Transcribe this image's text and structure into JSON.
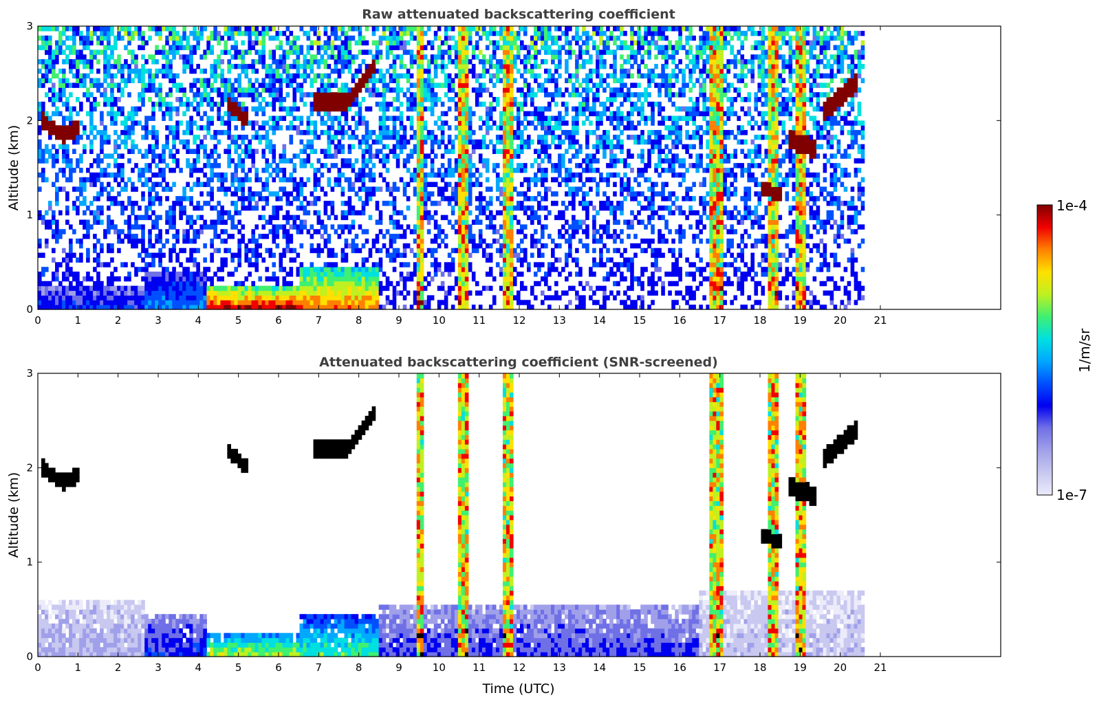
{
  "chart_data": [
    {
      "type": "heatmap",
      "title": "Raw attenuated backscattering coefficient",
      "xlabel": "",
      "ylabel": "Altitude (km)",
      "xlim": [
        0,
        24
      ],
      "ylim": [
        0,
        3
      ],
      "x_ticks": [
        0,
        1,
        2,
        3,
        4,
        5,
        6,
        7,
        8,
        9,
        10,
        11,
        12,
        13,
        14,
        15,
        16,
        17,
        18,
        19,
        20,
        21
      ],
      "y_ticks": [
        0,
        1,
        2,
        3
      ],
      "x_tick_labels": [
        "0",
        "1",
        "2",
        "3",
        "4",
        "5",
        "6",
        "7",
        "8",
        "9",
        "10",
        "11",
        "12",
        "13",
        "14",
        "15",
        "16",
        "17",
        "18",
        "19",
        "20",
        "21"
      ],
      "y_tick_labels": [
        "0",
        "1",
        "2",
        "3"
      ],
      "data_end_hour": 20.6,
      "grid": false,
      "features": {
        "surface_layer": [
          {
            "x0": 0.0,
            "x1": 2.7,
            "top_km": 0.25,
            "level": 0.35
          },
          {
            "x0": 2.7,
            "x1": 4.2,
            "top_km": 0.4,
            "level": 0.45
          },
          {
            "x0": 4.2,
            "x1": 6.5,
            "top_km": 0.25,
            "level": 0.95
          },
          {
            "x0": 6.5,
            "x1": 8.5,
            "top_km": 0.45,
            "level": 0.85
          }
        ],
        "cloud_layers": [
          {
            "x": [
              0.1,
              0.6,
              1.0
            ],
            "alt_km": [
              2.0,
              1.85,
              1.92
            ],
            "thickness_km": 0.12
          },
          {
            "x": [
              4.7,
              5.2
            ],
            "alt_km": [
              2.2,
              2.0
            ],
            "thickness_km": 0.1
          },
          {
            "x": [
              6.9,
              7.7,
              8.4
            ],
            "alt_km": [
              2.2,
              2.2,
              2.6
            ],
            "thickness_km": 0.12
          },
          {
            "x": [
              18.0,
              18.5
            ],
            "alt_km": [
              1.3,
              1.2
            ],
            "thickness_km": 0.1
          },
          {
            "x": [
              18.7,
              19.4
            ],
            "alt_km": [
              1.8,
              1.7
            ],
            "thickness_km": 0.15
          },
          {
            "x": [
              19.6,
              20.4
            ],
            "alt_km": [
              2.1,
              2.4
            ],
            "thickness_km": 0.15
          }
        ],
        "precipitation_columns": [
          {
            "x": 9.5,
            "width_h": 0.08
          },
          {
            "x": 10.6,
            "width_h": 0.18
          },
          {
            "x": 11.7,
            "width_h": 0.12
          },
          {
            "x": 16.8,
            "width_h": 0.1
          },
          {
            "x": 17.0,
            "width_h": 0.12
          },
          {
            "x": 18.3,
            "width_h": 0.18
          },
          {
            "x": 19.0,
            "width_h": 0.2
          }
        ]
      }
    },
    {
      "type": "heatmap",
      "title": "Attenuated backscattering coefficient (SNR-screened)",
      "xlabel": "Time (UTC)",
      "ylabel": "Altitude (km)",
      "xlim": [
        0,
        24
      ],
      "ylim": [
        0,
        3
      ],
      "x_ticks": [
        0,
        1,
        2,
        3,
        4,
        5,
        6,
        7,
        8,
        9,
        10,
        11,
        12,
        13,
        14,
        15,
        16,
        17,
        18,
        19,
        20,
        21
      ],
      "y_ticks": [
        0,
        1,
        2,
        3
      ],
      "x_tick_labels": [
        "0",
        "1",
        "2",
        "3",
        "4",
        "5",
        "6",
        "7",
        "8",
        "9",
        "10",
        "11",
        "12",
        "13",
        "14",
        "15",
        "16",
        "17",
        "18",
        "19",
        "20",
        "21"
      ],
      "y_tick_labels": [
        "0",
        "1",
        "2",
        "3"
      ],
      "data_end_hour": 20.6,
      "grid": false,
      "features": {
        "boundary_layer": [
          {
            "x0": 0.0,
            "x1": 2.7,
            "top_km": 0.6,
            "level": 0.15
          },
          {
            "x0": 2.7,
            "x1": 4.2,
            "top_km": 0.45,
            "level": 0.35
          },
          {
            "x0": 4.2,
            "x1": 6.5,
            "top_km": 0.25,
            "level": 0.7
          },
          {
            "x0": 6.5,
            "x1": 8.5,
            "top_km": 0.45,
            "level": 0.6
          },
          {
            "x0": 8.5,
            "x1": 16.5,
            "top_km": 0.55,
            "level": 0.3
          },
          {
            "x0": 16.5,
            "x1": 20.6,
            "top_km": 0.7,
            "level": 0.12
          }
        ],
        "cloud_layers": [
          {
            "x": [
              0.1,
              0.6,
              1.0
            ],
            "alt_km": [
              2.0,
              1.85,
              1.92
            ],
            "thickness_km": 0.12
          },
          {
            "x": [
              4.7,
              5.2
            ],
            "alt_km": [
              2.2,
              2.0
            ],
            "thickness_km": 0.1
          },
          {
            "x": [
              6.9,
              7.7,
              8.4
            ],
            "alt_km": [
              2.2,
              2.2,
              2.6
            ],
            "thickness_km": 0.12
          },
          {
            "x": [
              18.0,
              18.5
            ],
            "alt_km": [
              1.3,
              1.2
            ],
            "thickness_km": 0.1
          },
          {
            "x": [
              18.7,
              19.4
            ],
            "alt_km": [
              1.8,
              1.7
            ],
            "thickness_km": 0.15
          },
          {
            "x": [
              19.6,
              20.4
            ],
            "alt_km": [
              2.1,
              2.4
            ],
            "thickness_km": 0.15
          }
        ],
        "precipitation_columns": [
          {
            "x": 9.5,
            "width_h": 0.08
          },
          {
            "x": 10.6,
            "width_h": 0.18
          },
          {
            "x": 11.7,
            "width_h": 0.12
          },
          {
            "x": 16.8,
            "width_h": 0.1
          },
          {
            "x": 17.0,
            "width_h": 0.12
          },
          {
            "x": 18.3,
            "width_h": 0.18
          },
          {
            "x": 19.0,
            "width_h": 0.2
          }
        ]
      }
    }
  ],
  "colorbar": {
    "label": "1/m/sr",
    "max_label": "1e-4",
    "min_label": "1e-7",
    "min": 1e-07,
    "max": 0.0001,
    "scale": "log",
    "colors": [
      "#ebebfa",
      "#c8c8f0",
      "#a0a0ea",
      "#7070e6",
      "#0000f0",
      "#0050ff",
      "#00a8ff",
      "#00e0e0",
      "#40f070",
      "#c0f020",
      "#ffe000",
      "#ff8000",
      "#f00000",
      "#800000"
    ]
  }
}
